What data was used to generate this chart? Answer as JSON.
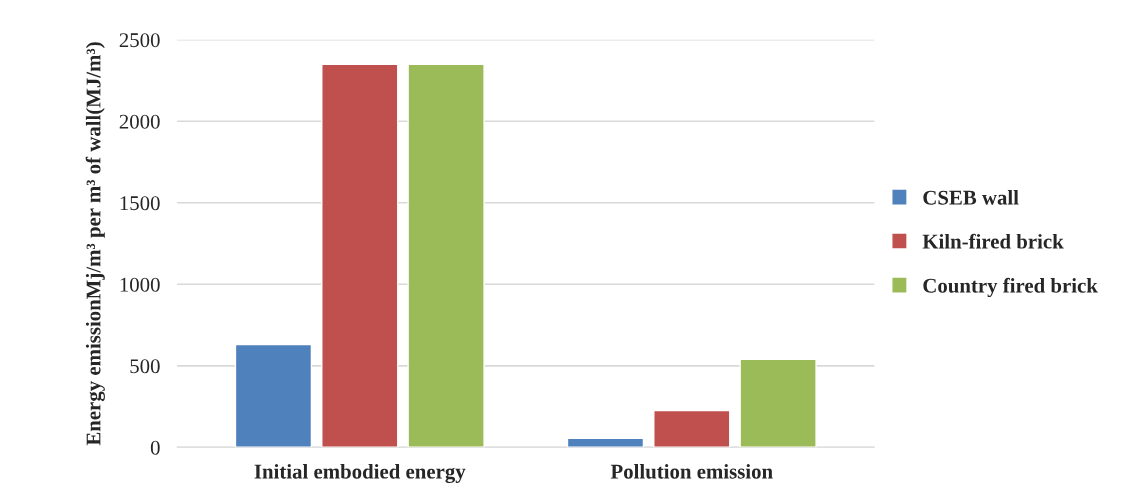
{
  "chart_data": {
    "type": "bar",
    "categories": [
      "Initial embodied energy",
      "Pollution emission"
    ],
    "series": [
      {
        "name": "CSEB wall",
        "color": "#4f81bd",
        "values": [
          630,
          55
        ]
      },
      {
        "name": "Kiln-fired brick",
        "color": "#c0504d",
        "values": [
          2350,
          225
        ]
      },
      {
        "name": "Country fired brick",
        "color": "#9bbb59",
        "values": [
          2350,
          540
        ]
      }
    ],
    "ylabel": "Energy emissionMj/m³ per m³ of wall(MJ/m³)",
    "ylim": [
      0,
      2500
    ],
    "yticks": [
      0,
      500,
      1000,
      1500,
      2000,
      2500
    ],
    "grid": "y",
    "legend": "right"
  }
}
